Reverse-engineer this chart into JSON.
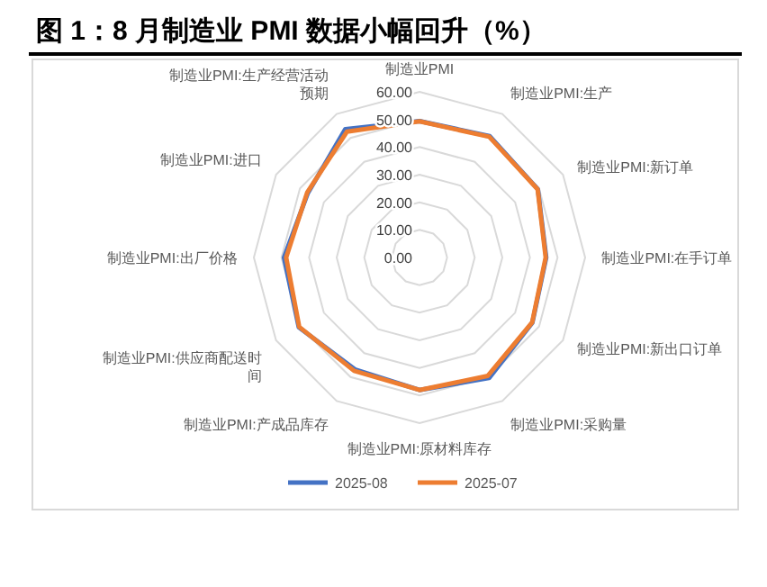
{
  "chart_data": {
    "type": "radar",
    "title": "图 1：8 月制造业 PMI 数据小幅回升（%）",
    "categories": [
      "制造业PMI",
      "制造业PMI:生产",
      "制造业PMI:新订单",
      "制造业PMI:在手订单",
      "制造业PMI:新出口订单",
      "制造业PMI:采购量",
      "制造业PMI:原材料库存",
      "制造业PMI:产成品库存",
      "制造业PMI:供应商配送时间",
      "制造业PMI:出厂价格",
      "制造业PMI:进口",
      "制造业PMI:生产经营活动预期"
    ],
    "series": [
      {
        "name": "2025-08",
        "color": "#4472c4",
        "values": [
          49.4,
          50.8,
          49.5,
          45.9,
          47.2,
          50.4,
          48.0,
          46.8,
          50.5,
          49.1,
          46.7,
          53.7
        ]
      },
      {
        "name": "2025-07",
        "color": "#ed7d31",
        "values": [
          49.3,
          50.5,
          49.4,
          45.7,
          47.1,
          49.5,
          48.0,
          47.4,
          50.3,
          48.3,
          47.0,
          52.6
        ]
      }
    ],
    "ylim": [
      0,
      60
    ],
    "yticks": [
      {
        "value": 0,
        "label": "0.00"
      },
      {
        "value": 10,
        "label": "10.00"
      },
      {
        "value": 20,
        "label": "20.00"
      },
      {
        "value": 30,
        "label": "30.00"
      },
      {
        "value": 40,
        "label": "40.00"
      },
      {
        "value": 50,
        "label": "50.00"
      },
      {
        "value": 60,
        "label": "60.00"
      }
    ],
    "grid": true,
    "legend": "bottom"
  }
}
